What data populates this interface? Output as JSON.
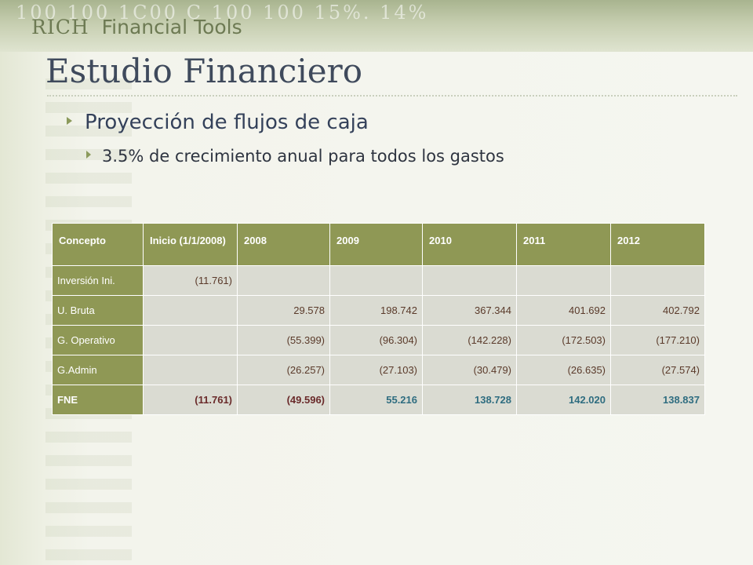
{
  "header": {
    "brand_prefix": "RICH",
    "brand_suffix": "Financial Tools",
    "deco_text": "100   100   1C00   C   100   100   15%.   14%"
  },
  "slide": {
    "title": "Estudio Financiero",
    "bullet_level1": "Proyección de flujos de caja",
    "bullet_level2": "3.5% de crecimiento anual para todos los gastos"
  },
  "table": {
    "columns": [
      "Concepto",
      "Inicio (1/1/2008)",
      "2008",
      "2009",
      "2010",
      "2011",
      "2012"
    ],
    "rows": [
      {
        "label": "Inversión Ini.",
        "cells": [
          "(11.761)",
          "",
          "",
          "",
          "",
          ""
        ]
      },
      {
        "label": "U. Bruta",
        "cells": [
          "",
          "29.578",
          "198.742",
          "367.344",
          "401.692",
          "402.792"
        ]
      },
      {
        "label": "G. Operativo",
        "cells": [
          "",
          "(55.399)",
          "(96.304)",
          "(142.228)",
          "(172.503)",
          "(177.210)"
        ]
      },
      {
        "label": "G.Admin",
        "cells": [
          "",
          "(26.257)",
          "(27.103)",
          "(30.479)",
          "(26.635)",
          "(27.574)"
        ]
      },
      {
        "label": "FNE",
        "cells": [
          "(11.761)",
          "(49.596)",
          "55.216",
          "138.728",
          "142.020",
          "138.837"
        ]
      }
    ]
  },
  "colors": {
    "header_fill": "#8f9855",
    "cell_fill": "#dadbd2",
    "title": "#3f4a5c",
    "positive_total": "#2f6d80"
  }
}
